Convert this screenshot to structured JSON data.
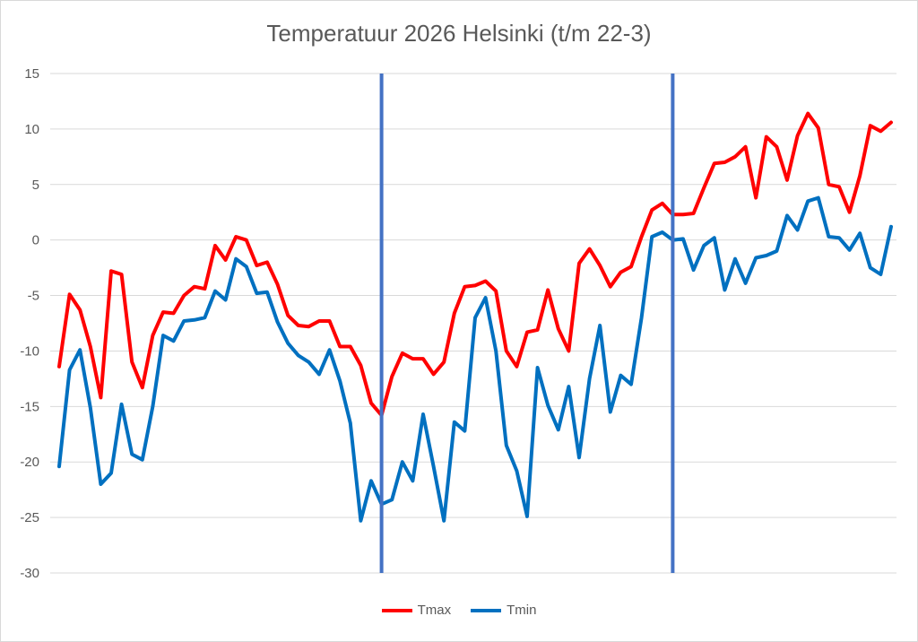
{
  "chart_data": {
    "type": "line",
    "title": "Temperatuur 2026 Helsinki (t/m 22-3)",
    "xlabel": "",
    "ylabel": "",
    "ylim": [
      -30,
      15
    ],
    "yticks": [
      15,
      10,
      5,
      0,
      -5,
      -10,
      -15,
      -20,
      -25,
      -30
    ],
    "grid": true,
    "legend": "bottom",
    "vertical_markers_at_day": [
      32,
      60
    ],
    "series": [
      {
        "name": "Tmax",
        "color": "#ff0000",
        "values": [
          -11.4,
          -4.9,
          -6.3,
          -9.6,
          -14.2,
          -2.8,
          -3.1,
          -11,
          -13.3,
          -8.6,
          -6.5,
          -6.6,
          -5,
          -4.2,
          -4.4,
          -0.5,
          -1.8,
          0.3,
          0,
          -2.3,
          -2,
          -4,
          -6.8,
          -7.7,
          -7.8,
          -7.3,
          -7.3,
          -9.6,
          -9.6,
          -11.3,
          -14.7,
          -15.8,
          -12.3,
          -10.2,
          -10.7,
          -10.7,
          -12.1,
          -11,
          -6.6,
          -4.2,
          -4.1,
          -3.7,
          -4.6,
          -10,
          -11.4,
          -8.3,
          -8.1,
          -4.5,
          -8,
          -10,
          -2.1,
          -0.8,
          -2.3,
          -4.2,
          -2.9,
          -2.4,
          0.3,
          2.7,
          3.3,
          2.3,
          2.3,
          2.4,
          4.7,
          6.9,
          7,
          7.5,
          8.4,
          3.8,
          9.3,
          8.4,
          5.4,
          9.4,
          11.4,
          10.1,
          5,
          4.8,
          2.5,
          5.8,
          10.3,
          9.8,
          10.6
        ]
      },
      {
        "name": "Tmin",
        "color": "#0070c0",
        "values": [
          -20.4,
          -11.7,
          -9.9,
          -15.1,
          -22,
          -21,
          -14.8,
          -19.3,
          -19.8,
          -15,
          -8.6,
          -9.1,
          -7.3,
          -7.2,
          -7,
          -4.6,
          -5.4,
          -1.7,
          -2.4,
          -4.8,
          -4.7,
          -7.4,
          -9.3,
          -10.4,
          -11,
          -12.1,
          -9.9,
          -12.7,
          -16.5,
          -25.3,
          -21.7,
          -23.8,
          -23.4,
          -20,
          -21.7,
          -15.7,
          -20.4,
          -25.3,
          -16.4,
          -17.2,
          -7,
          -5.2,
          -10,
          -18.5,
          -20.8,
          -24.9,
          -11.5,
          -14.9,
          -17.1,
          -13.2,
          -19.6,
          -12.5,
          -7.7,
          -15.5,
          -12.2,
          -13,
          -7,
          0.3,
          0.7,
          0,
          0.1,
          -2.7,
          -0.5,
          0.2,
          -4.5,
          -1.7,
          -3.9,
          -1.6,
          -1.4,
          -1,
          2.2,
          0.9,
          3.5,
          3.8,
          0.3,
          0.2,
          -0.9,
          0.6,
          -2.5,
          -3.1,
          1.2
        ]
      }
    ]
  }
}
